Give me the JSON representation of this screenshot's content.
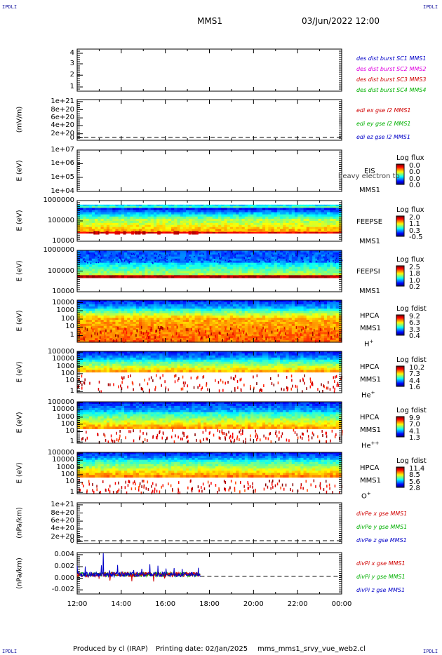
{
  "corner_label": "IPDLI",
  "header": {
    "spacecraft": "MMS1",
    "datetime": "03/Jun/2022 12:00"
  },
  "footer": {
    "produced": "Produced by cl (IRAP)",
    "printing": "Printing date: 02/Jan/2025",
    "file": "mms_mms1_srvy_vue_web2.cl"
  },
  "x_ticks": [
    "12:00",
    "14:00",
    "16:00",
    "18:00",
    "20:00",
    "22:00",
    "00:00"
  ],
  "chart_data": [
    {
      "type": "line",
      "title": "",
      "ylabel": "",
      "y_ticks": [
        "4",
        "3",
        "2",
        "1"
      ],
      "legend": [
        {
          "text": "des dist burst SC1 MMS1",
          "color": "#0000c8"
        },
        {
          "text": "des dist burst SC2 MMS2",
          "color": "#e000e0"
        },
        {
          "text": "des dist burst SC3 MMS3",
          "color": "#d00000"
        },
        {
          "text": "des dist burst SC4 MMS4",
          "color": "#00b000"
        }
      ],
      "series": []
    },
    {
      "type": "line",
      "ylabel": "(mV/m)",
      "y_ticks": [
        "1e+21",
        "8e+20",
        "6e+20",
        "4e+20",
        "2e+20",
        "0"
      ],
      "ylim": [
        0,
        1e+21
      ],
      "legend": [
        {
          "text": "edi ex gse l2 MMS1",
          "color": "#d00000"
        },
        {
          "text": "edi ey gse l2 MMS1",
          "color": "#00b000"
        },
        {
          "text": "edi ez gse l2 MMS1",
          "color": "#0000c8"
        }
      ],
      "series": []
    },
    {
      "type": "heatmap",
      "ylabel": "E (eV)",
      "log_y": true,
      "y_ticks": [
        "1e+07",
        "1e+06",
        "1e+05",
        "1e+04"
      ],
      "instrument": [
        "EIS",
        "MMS1"
      ],
      "overlay_text": "heavy electron to",
      "colorbar": {
        "title": "Log flux",
        "ticks": [
          "0.0",
          "0.0",
          "0.0",
          "0.0"
        ]
      }
    },
    {
      "type": "heatmap",
      "ylabel": "E (eV)",
      "log_y": true,
      "y_ticks": [
        "1000000",
        "100000",
        "10000"
      ],
      "instrument": [
        "FEEPSE",
        "MMS1"
      ],
      "colorbar": {
        "title": "Log flux",
        "ticks": [
          "2.0",
          "1.1",
          "0.3",
          "-0.5"
        ]
      }
    },
    {
      "type": "heatmap",
      "ylabel": "E (eV)",
      "log_y": true,
      "y_ticks": [
        "1000000",
        "100000",
        "10000"
      ],
      "instrument": [
        "FEEPSI",
        "MMS1"
      ],
      "colorbar": {
        "title": "Log flux",
        "ticks": [
          "2.5",
          "1.8",
          "1.0",
          "0.2"
        ]
      }
    },
    {
      "type": "heatmap",
      "ylabel": "E (eV)",
      "log_y": true,
      "y_ticks": [
        "10000",
        "1000",
        "100",
        "10",
        "1"
      ],
      "instrument": [
        "HPCA",
        "MMS1",
        "H",
        "+"
      ],
      "colorbar": {
        "title": "Log fdist",
        "ticks": [
          "9.2",
          "6.3",
          "3.3",
          "0.4"
        ]
      }
    },
    {
      "type": "heatmap",
      "ylabel": "E (eV)",
      "log_y": true,
      "y_ticks": [
        "100000",
        "10000",
        "1000",
        "100",
        "10",
        "1"
      ],
      "instrument": [
        "HPCA",
        "MMS1",
        "He",
        "+"
      ],
      "colorbar": {
        "title": "Log fdist",
        "ticks": [
          "10.2",
          "7.3",
          "4.4",
          "1.6"
        ]
      }
    },
    {
      "type": "heatmap",
      "ylabel": "E (eV)",
      "log_y": true,
      "y_ticks": [
        "100000",
        "10000",
        "1000",
        "100",
        "10",
        "1"
      ],
      "instrument": [
        "HPCA",
        "MMS1",
        "He",
        "++"
      ],
      "colorbar": {
        "title": "Log fdist",
        "ticks": [
          "9.9",
          "7.0",
          "4.1",
          "1.3"
        ]
      }
    },
    {
      "type": "heatmap",
      "ylabel": "E (eV)",
      "log_y": true,
      "y_ticks": [
        "100000",
        "10000",
        "1000",
        "100",
        "10",
        "1"
      ],
      "instrument": [
        "HPCA",
        "MMS1",
        "O",
        "+"
      ],
      "colorbar": {
        "title": "Log fdist",
        "ticks": [
          "11.4",
          "8.5",
          "5.6",
          "2.8"
        ]
      }
    },
    {
      "type": "line",
      "ylabel": "(nPa/km)",
      "y_ticks": [
        "1e+21",
        "8e+20",
        "6e+20",
        "4e+20",
        "2e+20",
        "0"
      ],
      "ylim": [
        0,
        1e+21
      ],
      "legend": [
        {
          "text": "divPe x gse MMS1",
          "color": "#d00000"
        },
        {
          "text": "divPe y gse MMS1",
          "color": "#00b000"
        },
        {
          "text": "divPe z gse MMS1",
          "color": "#0000c8"
        }
      ],
      "series": []
    },
    {
      "type": "line",
      "ylabel": "(nPa/km)",
      "y_ticks": [
        "0.004",
        "0.002",
        "0.000",
        "-0.002"
      ],
      "ylim": [
        -0.003,
        0.004
      ],
      "data_end_time": "17:35",
      "legend": [
        {
          "text": "divPi x gse MMS1",
          "color": "#d00000"
        },
        {
          "text": "divPi y gse MMS1",
          "color": "#00b000"
        },
        {
          "text": "divPi z gse MMS1",
          "color": "#0000c8"
        }
      ],
      "series": [
        {
          "color": "#0000c8",
          "note": "",
          "x": [
            "12:00",
            "13:00",
            "13:20",
            "14:00",
            "15:00",
            "16:00",
            "17:00",
            "17:35"
          ],
          "y": [
            0.0,
            0.001,
            0.004,
            0.0015,
            0.0005,
            0.0008,
            0.0005,
            0.0002
          ]
        }
      ]
    }
  ]
}
